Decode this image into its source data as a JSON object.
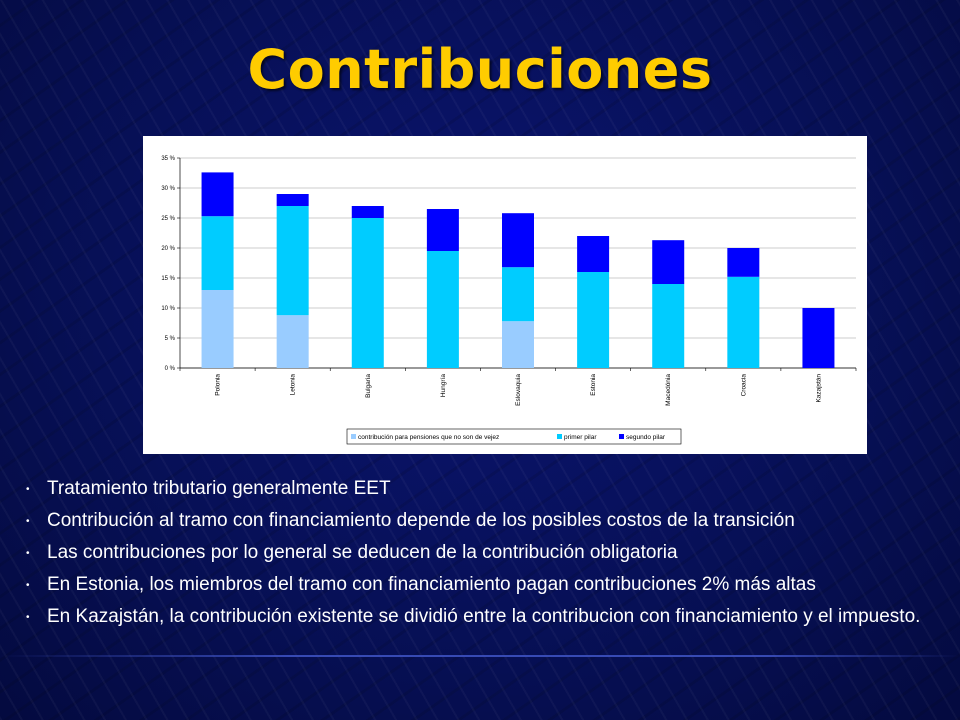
{
  "slide": {
    "title": "Contribuciones",
    "bullet_glyph": "•",
    "bullets": [
      "Tratamiento tributario generalmente EET",
      "Contribución al tramo con financiamiento depende de los posibles costos de la transición",
      "Las contribuciones por lo general se deducen de la contribución obligatoria",
      "En Estonia, los miembros del tramo con financiamiento pagan contribuciones 2% más altas",
      "En Kazajstán, la contribución existente se dividió entre la contribucion con financiamiento y el impuesto."
    ],
    "colors": {
      "title": "#ffcc00",
      "background": "#071057",
      "text": "#ffffff"
    }
  },
  "chart_data": {
    "type": "bar",
    "stacked": true,
    "categories": [
      "Polonia",
      "Letonia",
      "Bulgaria",
      "Hungría",
      "Eslovaquia",
      "Estonia",
      "Macedónia",
      "Croacia",
      "Kazajstán"
    ],
    "series": [
      {
        "name": "contribución para pensiones que no son de vejez",
        "color": "#99ccff",
        "values": [
          13,
          8.8,
          0,
          0,
          7.8,
          0,
          0,
          0,
          0
        ]
      },
      {
        "name": "primer pilar",
        "color": "#00ccff",
        "values": [
          12.3,
          18.2,
          25,
          19.5,
          9,
          16,
          14,
          15.2,
          0
        ]
      },
      {
        "name": "segundo pilar",
        "color": "#0000ff",
        "values": [
          7.3,
          2,
          2,
          7,
          9,
          6,
          7.3,
          4.8,
          10
        ]
      }
    ],
    "yticks": [
      "0 %",
      "5 %",
      "10 %",
      "15 %",
      "20 %",
      "25 %",
      "30 %",
      "35 %"
    ],
    "ylim": [
      0,
      35
    ],
    "grid": true,
    "legend_position": "bottom-center",
    "title": "",
    "xlabel": "",
    "ylabel": ""
  }
}
